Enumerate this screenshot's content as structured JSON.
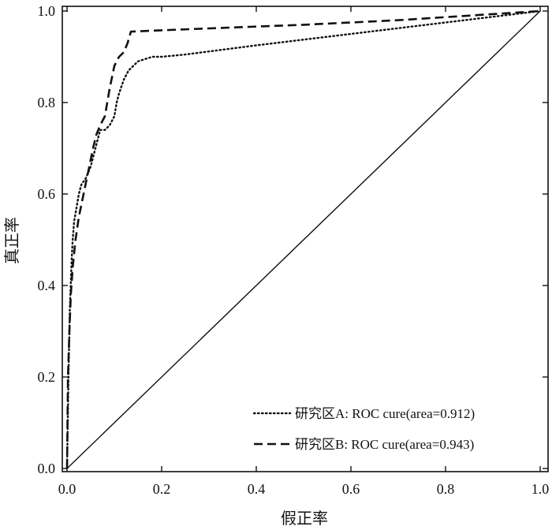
{
  "chart_data": {
    "type": "line",
    "xlabel": "假正率",
    "ylabel": "真正率",
    "xlim": [
      0,
      1
    ],
    "ylim": [
      0,
      1
    ],
    "x_ticks": [
      "0.0",
      "0.2",
      "0.4",
      "0.6",
      "0.8",
      "1.0"
    ],
    "y_ticks": [
      "0.0",
      "0.2",
      "0.4",
      "0.6",
      "0.8",
      "1.0"
    ],
    "grid": false,
    "legend_position": "bottom-right",
    "reference_line": {
      "x": [
        0,
        1
      ],
      "y": [
        0,
        1
      ],
      "style": "solid"
    },
    "series": [
      {
        "name": "研究区A: ROC cure(area=0.912)",
        "style": "dotted",
        "x": [
          0.0,
          0.003,
          0.006,
          0.01,
          0.012,
          0.015,
          0.02,
          0.025,
          0.03,
          0.04,
          0.05,
          0.055,
          0.06,
          0.065,
          0.07,
          0.08,
          0.09,
          0.1,
          0.105,
          0.11,
          0.12,
          0.13,
          0.15,
          0.18,
          0.2,
          0.25,
          0.4,
          0.6,
          0.8,
          1.0
        ],
        "y": [
          0.0,
          0.2,
          0.35,
          0.46,
          0.5,
          0.54,
          0.57,
          0.6,
          0.62,
          0.635,
          0.66,
          0.68,
          0.7,
          0.72,
          0.74,
          0.74,
          0.75,
          0.77,
          0.8,
          0.82,
          0.85,
          0.87,
          0.89,
          0.9,
          0.9,
          0.905,
          0.925,
          0.95,
          0.975,
          1.0
        ]
      },
      {
        "name": "研究区B: ROC cure(area=0.943)",
        "style": "dashed",
        "x": [
          0.0,
          0.002,
          0.005,
          0.008,
          0.012,
          0.018,
          0.025,
          0.035,
          0.045,
          0.055,
          0.062,
          0.07,
          0.08,
          0.09,
          0.1,
          0.11,
          0.12,
          0.128,
          0.135,
          0.2,
          0.3,
          0.5,
          0.7,
          0.85,
          1.0
        ],
        "y": [
          0.0,
          0.2,
          0.3,
          0.38,
          0.44,
          0.5,
          0.55,
          0.6,
          0.65,
          0.7,
          0.73,
          0.75,
          0.77,
          0.83,
          0.88,
          0.9,
          0.91,
          0.93,
          0.955,
          0.958,
          0.962,
          0.97,
          0.98,
          0.99,
          1.0
        ]
      }
    ]
  }
}
